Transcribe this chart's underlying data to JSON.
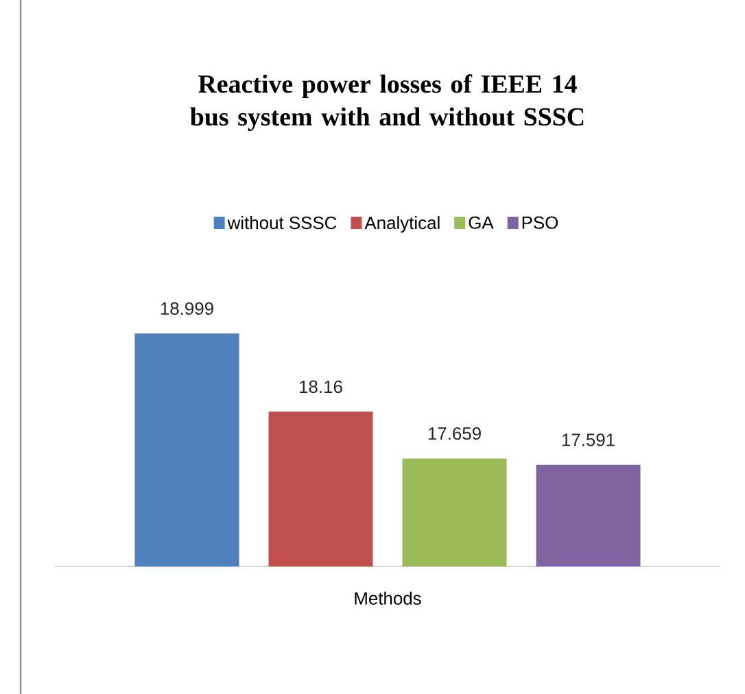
{
  "chart_data": {
    "type": "bar",
    "title": "Reactive power losses of IEEE 14 bus system with and without SSSC",
    "xlabel": "Methods",
    "categories": [
      null
    ],
    "series": [
      {
        "name": "without SSSC",
        "color": "#4f81bd",
        "values": [
          18.999
        ]
      },
      {
        "name": "Analytical",
        "color": "#c0504d",
        "values": [
          18.16
        ]
      },
      {
        "name": "GA",
        "color": "#9bbb59",
        "values": [
          17.659
        ]
      },
      {
        "name": "PSO",
        "color": "#8064a2",
        "values": [
          17.591
        ]
      }
    ],
    "ylim": [
      16.5,
      19
    ],
    "data_labels": true,
    "legend": "top",
    "tick_labels": false
  }
}
